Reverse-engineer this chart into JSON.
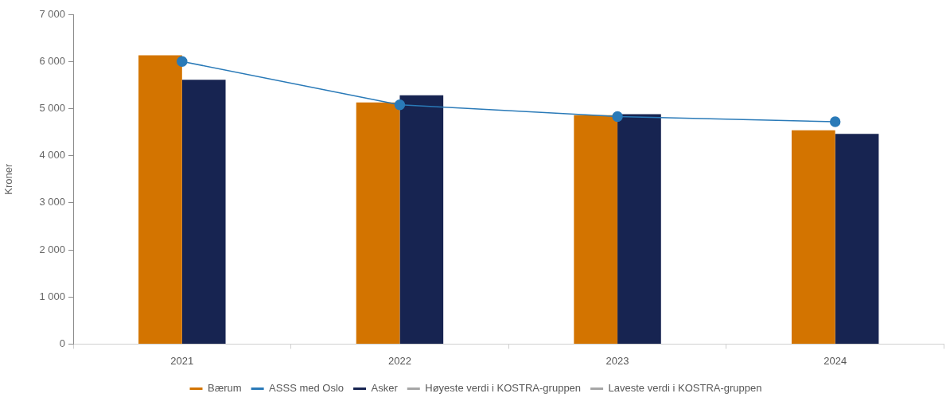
{
  "chart_data": {
    "type": "bar",
    "categories": [
      "2021",
      "2022",
      "2023",
      "2024"
    ],
    "series": [
      {
        "name": "Bærum",
        "color": "#d37400",
        "values": [
          6130,
          5130,
          4860,
          4540
        ]
      },
      {
        "name": "ASSS med Oslo",
        "type": "line",
        "color": "#2a7ab8",
        "values": [
          6000,
          5080,
          4830,
          4720
        ]
      },
      {
        "name": "Asker",
        "color": "#172451",
        "values": [
          5610,
          5280,
          4880,
          4460
        ]
      },
      {
        "name": "Høyeste verdi i KOSTRA-gruppen",
        "type": "line",
        "color": "#a6a6a6",
        "values": [
          null,
          null,
          null,
          null
        ]
      },
      {
        "name": "Laveste verdi i KOSTRA-gruppen",
        "type": "line",
        "color": "#a6a6a6",
        "values": [
          null,
          null,
          null,
          null
        ]
      }
    ],
    "ylabel": "Kroner",
    "ylim": [
      0,
      7000
    ],
    "yticks": [
      0,
      {
        "value": 1000,
        "label": "1 000"
      },
      {
        "value": 2000,
        "label": "2 000"
      },
      {
        "value": 3000,
        "label": "3 000"
      },
      {
        "value": 4000,
        "label": "4 000"
      },
      {
        "value": 5000,
        "label": "5 000"
      },
      {
        "value": 6000,
        "label": "6 000"
      },
      {
        "value": 7000,
        "label": "7 000"
      }
    ],
    "grid": false,
    "legend": "bottom",
    "marker": "circle",
    "line_style": "solid"
  }
}
